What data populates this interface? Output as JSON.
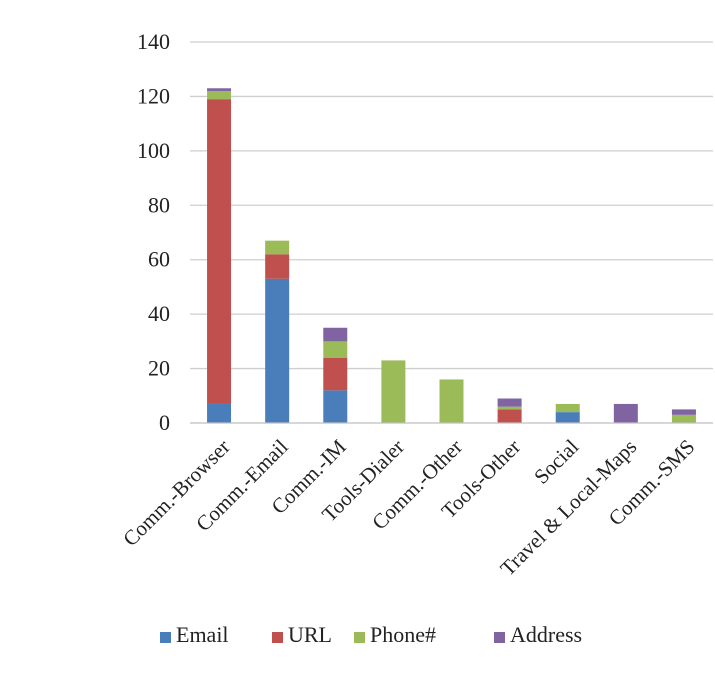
{
  "chart_data": {
    "type": "bar",
    "stacked": true,
    "title": "",
    "xlabel": "",
    "ylabel": "",
    "ylim": [
      0,
      140
    ],
    "yticks": [
      0,
      20,
      40,
      60,
      80,
      100,
      120,
      140
    ],
    "grid": true,
    "legend_position": "bottom",
    "categories": [
      "Comm.-Browser",
      "Comm.-Email",
      "Comm.-IM",
      "Tools-Dialer",
      "Comm.-Other",
      "Tools-Other",
      "Social",
      "Travel & Local-Maps",
      "Comm.-SMS"
    ],
    "series": [
      {
        "name": "Email",
        "color": "#4a7ebb",
        "values": [
          7,
          53,
          12,
          0,
          0,
          0,
          4,
          0,
          0
        ]
      },
      {
        "name": "URL",
        "color": "#c0504d",
        "values": [
          112,
          9,
          12,
          0,
          0,
          5,
          0,
          0,
          0
        ]
      },
      {
        "name": "Phone#",
        "color": "#9bbb59",
        "values": [
          3,
          5,
          6,
          23,
          16,
          1,
          3,
          0,
          3
        ]
      },
      {
        "name": "Address",
        "color": "#8064a2",
        "values": [
          1,
          0,
          5,
          0,
          0,
          3,
          0,
          7,
          2
        ]
      }
    ]
  }
}
